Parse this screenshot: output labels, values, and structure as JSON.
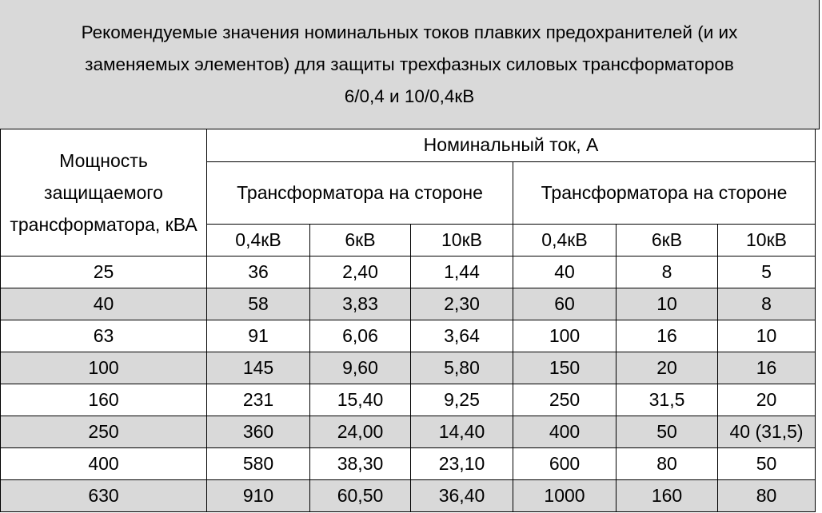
{
  "title": {
    "line1": "Рекомендуемые значения номинальных токов плавких предохранителей (и их",
    "line2": "заменяемых элементов) для защиты трехфазных силовых трансформаторов",
    "line3": "6/0,4 и 10/0,4кВ"
  },
  "header": {
    "power": "Мощность защищаемого трансформатора, кВА",
    "nominal_current": "Номинальный ток, А",
    "group1": "Трансформатора на стороне",
    "group2": "Трансформатора на стороне",
    "sub": [
      "0,4кВ",
      "6кВ",
      "10кВ",
      "0,4кВ",
      "6кВ",
      "10кВ"
    ]
  },
  "rows": [
    [
      "25",
      "36",
      "2,40",
      "1,44",
      "40",
      "8",
      "5"
    ],
    [
      "40",
      "58",
      "3,83",
      "2,30",
      "60",
      "10",
      "8"
    ],
    [
      "63",
      "91",
      "6,06",
      "3,64",
      "100",
      "16",
      "10"
    ],
    [
      "100",
      "145",
      "9,60",
      "5,80",
      "150",
      "20",
      "16"
    ],
    [
      "160",
      "231",
      "15,40",
      "9,25",
      "250",
      "31,5",
      "20"
    ],
    [
      "250",
      "360",
      "24,00",
      "14,40",
      "400",
      "50",
      "40 (31,5)"
    ],
    [
      "400",
      "580",
      "38,30",
      "23,10",
      "600",
      "80",
      "50"
    ],
    [
      "630",
      "910",
      "60,50",
      "36,40",
      "1000",
      "160",
      "80"
    ]
  ],
  "colors": {
    "shade": "#d9d9d9",
    "border": "#000000",
    "background": "#ffffff"
  }
}
